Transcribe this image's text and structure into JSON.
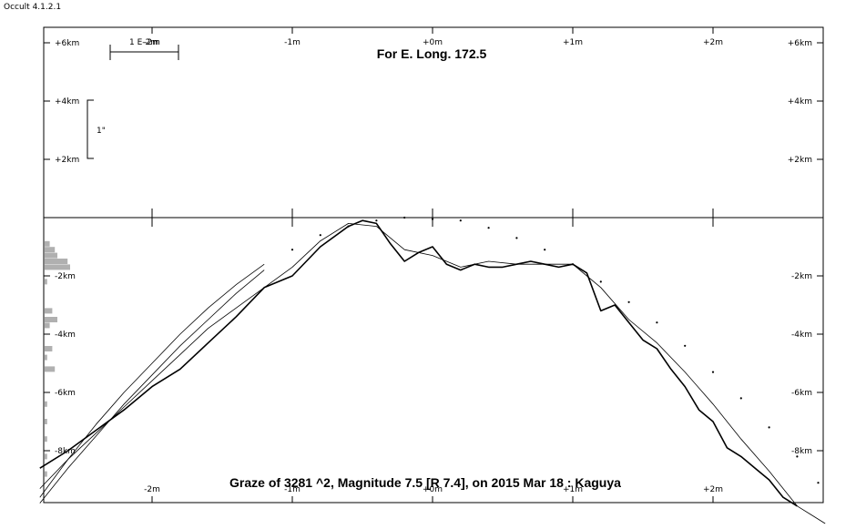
{
  "app_title": "Occult 4.1.2.1",
  "chart_data": {
    "type": "line",
    "title": "For E. Long. 172.5",
    "footer": "Graze of  3281 ^2,  Magnitude 7.5 [R 7.4],  on 2015 Mar 18  :  Kaguya",
    "x_unit": "m",
    "xlim": [
      -2.8,
      2.8
    ],
    "ylim": [
      -9.8,
      6.4
    ],
    "x_ticks": [
      {
        "value": -2,
        "label": "-2m"
      },
      {
        "value": -1,
        "label": "-1m"
      },
      {
        "value": 0,
        "label": "+0m"
      },
      {
        "value": 1,
        "label": "+1m"
      },
      {
        "value": 2,
        "label": "+2m"
      }
    ],
    "bottom_x_labels": [
      {
        "value": -2,
        "label": "-2m"
      },
      {
        "value": -1,
        "label": "-1m"
      },
      {
        "value": 0,
        "label": "+0m"
      },
      {
        "value": 1,
        "label": "+1m"
      },
      {
        "value": 2,
        "label": "+2m"
      }
    ],
    "y_ticks_upper": [
      {
        "value": 6,
        "label": "+6km"
      },
      {
        "value": 4,
        "label": "+4km"
      },
      {
        "value": 2,
        "label": "+2km"
      }
    ],
    "y_ticks_lower": [
      {
        "value": -2,
        "label": "-2km"
      },
      {
        "value": -4,
        "label": "-4km"
      },
      {
        "value": -6,
        "label": "-6km"
      },
      {
        "value": -8,
        "label": "-8km"
      }
    ],
    "scale_bar": {
      "label": "1 E-2m"
    },
    "arcsec_bar": {
      "label": "1\""
    },
    "series": [
      {
        "x": [
          -2.8,
          -2.6,
          -2.4,
          -2.2,
          -2.0,
          -1.8,
          -1.6,
          -1.4,
          -1.2,
          -1.0,
          -0.8,
          -0.6,
          -0.5,
          -0.4,
          -0.3,
          -0.2,
          -0.1,
          0.0,
          0.1,
          0.2,
          0.3,
          0.4,
          0.5,
          0.6,
          0.7,
          0.8,
          0.9,
          1.0,
          1.1,
          1.2,
          1.3,
          1.4,
          1.5,
          1.6,
          1.7,
          1.8,
          1.9,
          2.0,
          2.1,
          2.2,
          2.3,
          2.4,
          2.5,
          2.6
        ],
        "y": [
          -8.6,
          -8.0,
          -7.3,
          -6.6,
          -5.8,
          -5.2,
          -4.3,
          -3.4,
          -2.4,
          -2.0,
          -1.0,
          -0.3,
          -0.1,
          -0.2,
          -0.9,
          -1.5,
          -1.2,
          -1.0,
          -1.6,
          -1.8,
          -1.6,
          -1.7,
          -1.7,
          -1.6,
          -1.5,
          -1.6,
          -1.7,
          -1.6,
          -1.9,
          -3.2,
          -3.0,
          -3.6,
          -4.2,
          -4.5,
          -5.2,
          -5.8,
          -6.6,
          -7.0,
          -7.9,
          -8.2,
          -8.6,
          -9.0,
          -9.6,
          -9.9
        ]
      },
      {
        "x": [
          -2.8,
          -2.6,
          -2.4,
          -2.2,
          -2.0,
          -1.8,
          -1.6,
          -1.4,
          -1.2,
          -1.0,
          -0.8,
          -0.6,
          -0.4,
          -0.2,
          0.0,
          0.2,
          0.4,
          0.6,
          0.8,
          1.0,
          1.2,
          1.4,
          1.6,
          1.8,
          2.0,
          2.2,
          2.4,
          2.6,
          2.8
        ],
        "y": [
          -9.3,
          -8.3,
          -7.4,
          -6.5,
          -5.6,
          -4.7,
          -3.8,
          -3.1,
          -2.4,
          -1.7,
          -0.8,
          -0.2,
          -0.3,
          -1.1,
          -1.3,
          -1.7,
          -1.5,
          -1.6,
          -1.6,
          -1.6,
          -2.4,
          -3.5,
          -4.3,
          -5.3,
          -6.4,
          -7.6,
          -8.7,
          -9.9,
          -10.5
        ]
      },
      {
        "x": [
          -2.8,
          -2.6,
          -2.4,
          -2.2,
          -2.0,
          -1.8,
          -1.6,
          -1.4,
          -1.2
        ],
        "y": [
          -9.8,
          -8.6,
          -7.5,
          -6.4,
          -5.4,
          -4.4,
          -3.5,
          -2.6,
          -1.8
        ]
      },
      {
        "x": [
          -2.8,
          -2.6,
          -2.4,
          -2.2,
          -2.0,
          -1.8,
          -1.6,
          -1.4,
          -1.2
        ],
        "y": [
          -9.6,
          -8.3,
          -7.1,
          -6.0,
          -5.0,
          -4.0,
          -3.1,
          -2.3,
          -1.6
        ]
      }
    ],
    "dotted_limb": {
      "x": [
        -1.0,
        -0.8,
        -0.6,
        -0.4,
        -0.2,
        0.0,
        0.2,
        0.4,
        0.6,
        0.8,
        1.0,
        1.2,
        1.4,
        1.6,
        1.8,
        2.0,
        2.2,
        2.4,
        2.6,
        2.75
      ],
      "y": [
        -1.1,
        -0.6,
        -0.3,
        -0.1,
        0.0,
        -0.05,
        -0.1,
        -0.35,
        -0.7,
        -1.1,
        -1.6,
        -2.2,
        -2.9,
        -3.6,
        -4.4,
        -5.3,
        -6.2,
        -7.2,
        -8.2,
        -9.1
      ]
    },
    "histogram": {
      "y": [
        -0.9,
        -1.1,
        -1.3,
        -1.5,
        -1.7,
        -2.2,
        -3.2,
        -3.5,
        -3.7,
        -4.5,
        -4.8,
        -5.2,
        -6.4,
        -7.0,
        -7.6,
        -8.2,
        -8.8
      ],
      "values": [
        2,
        4,
        5,
        9,
        10,
        1,
        3,
        5,
        2,
        3,
        1,
        4,
        1,
        1,
        1,
        1,
        1
      ]
    }
  }
}
